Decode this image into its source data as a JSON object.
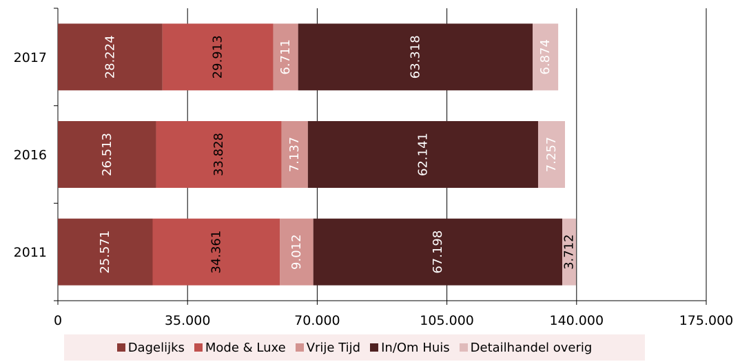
{
  "chart_data": {
    "type": "bar",
    "orientation": "horizontal",
    "stacked": true,
    "categories": [
      "2017",
      "2016",
      "2011"
    ],
    "series": [
      {
        "name": "Dagelijks",
        "color": "#8b3a36",
        "values": [
          28224,
          26513,
          25571
        ],
        "labels": [
          "28.224",
          "26.513",
          "25.571"
        ]
      },
      {
        "name": "Mode & Luxe",
        "color": "#c0504d",
        "values": [
          29913,
          33828,
          34361
        ],
        "labels": [
          "29.913",
          "33.828",
          "34.361"
        ]
      },
      {
        "name": "Vrije Tijd",
        "color": "#d39390",
        "values": [
          6711,
          7137,
          9012
        ],
        "labels": [
          "6.711",
          "7.137",
          "9.012"
        ]
      },
      {
        "name": "In/Om Huis",
        "color": "#4f2121",
        "values": [
          63318,
          62141,
          67198
        ],
        "labels": [
          "63.318",
          "62.141",
          "67.198"
        ]
      },
      {
        "name": "Detailhandel overig",
        "color": "#e0bbbb",
        "values": [
          6874,
          7257,
          3712
        ],
        "labels": [
          "6.874",
          "7.257",
          "3.712"
        ]
      }
    ],
    "xlim": [
      0,
      175000
    ],
    "x_ticks": [
      0,
      35000,
      70000,
      105000,
      140000,
      175000
    ],
    "x_tick_labels": [
      "0",
      "35.000",
      "70.000",
      "105.000",
      "140.000",
      "175.000"
    ],
    "grid": "vertical",
    "legend_position": "bottom",
    "data_label_colors": {
      "light": "#ffffff",
      "dark": "#000000"
    }
  }
}
